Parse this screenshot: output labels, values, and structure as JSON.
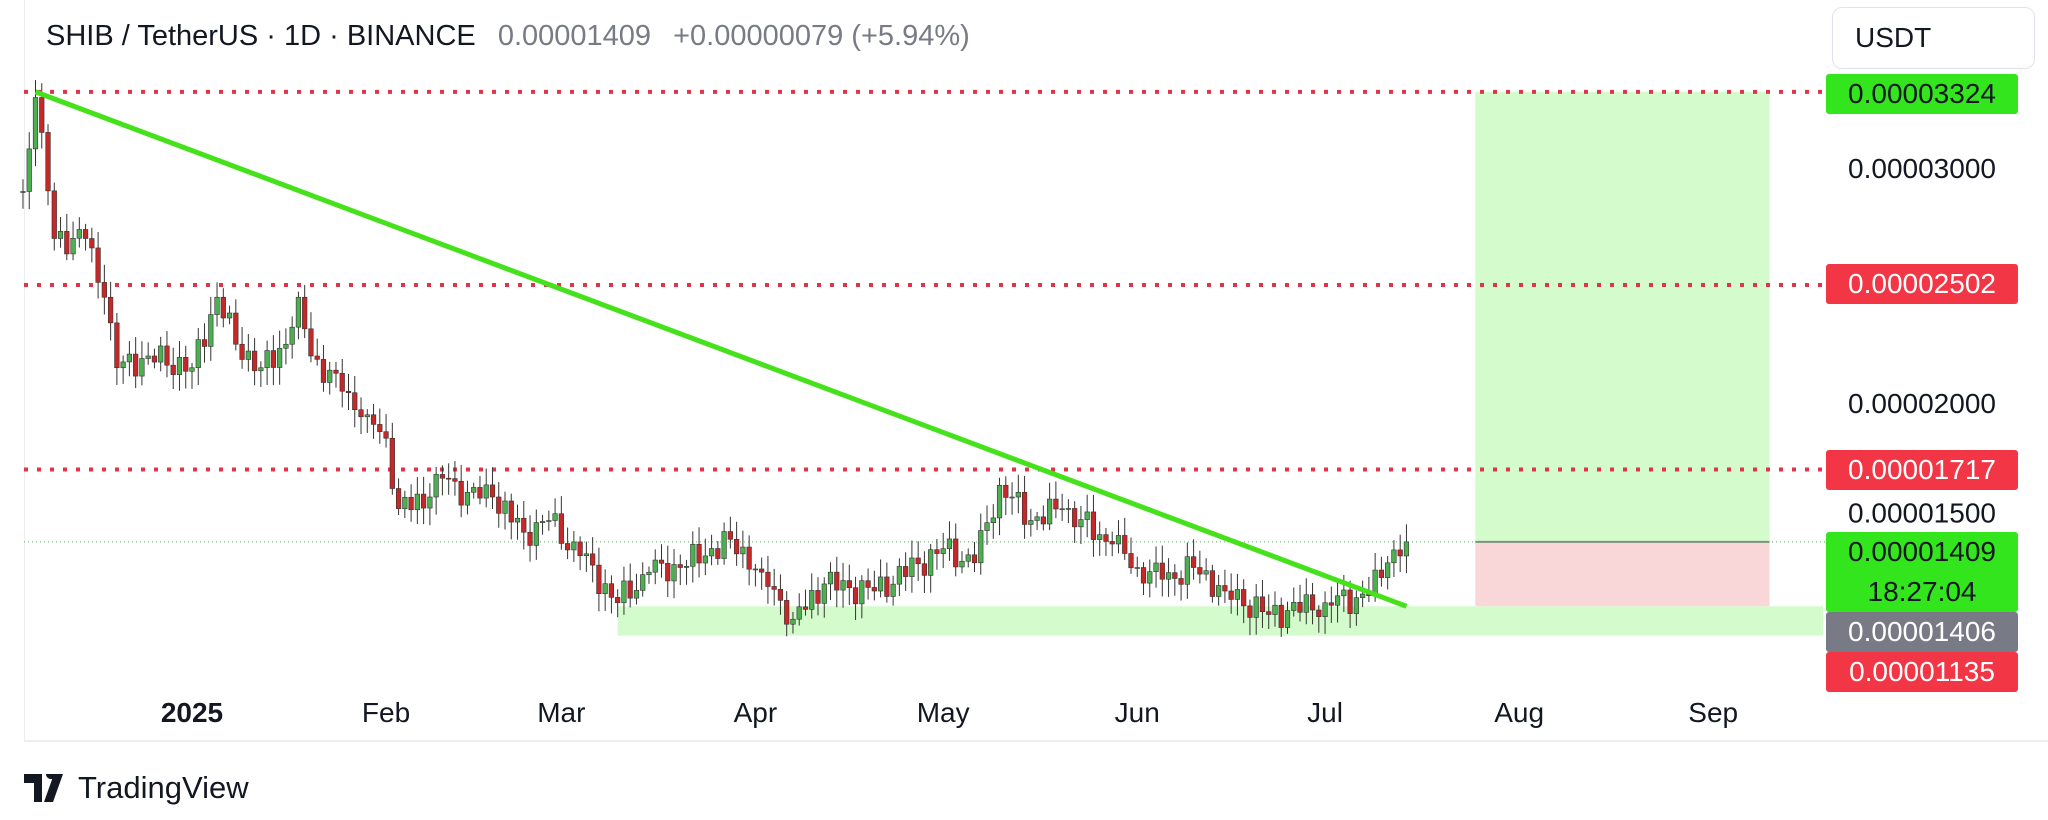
{
  "header": {
    "symbol": "SHIB / TetherUS · 1D · BINANCE",
    "price": "0.00001409",
    "change": "+0.00000079 (+5.94%)"
  },
  "currency_button": "USDT",
  "brand": "TradingView",
  "price_axis": {
    "plain_labels": [
      "0.00003000",
      "0.00002000",
      "0.00001500"
    ],
    "level_labels": [
      {
        "text": "0.00003324",
        "bg": "#33e51c",
        "fg": "#131722"
      },
      {
        "text": "0.00002502",
        "bg": "#f23645",
        "fg": "#ffffff"
      },
      {
        "text": "0.00001717",
        "bg": "#f23645",
        "fg": "#ffffff"
      },
      {
        "text": "0.00001409",
        "bg": "#33e51c",
        "fg": "#131722"
      },
      {
        "text": "18:27:04",
        "bg": "#33e51c",
        "fg": "#131722"
      },
      {
        "text": "0.00001406",
        "bg": "#787b86",
        "fg": "#ffffff"
      },
      {
        "text": "0.00001135",
        "bg": "#f23645",
        "fg": "#ffffff"
      }
    ]
  },
  "time_axis": [
    "2025",
    "Feb",
    "Mar",
    "Apr",
    "May",
    "Jun",
    "Jul",
    "Aug",
    "Sep"
  ],
  "colors": {
    "up": "#4caf50",
    "down": "#c62828",
    "trend": "#45e21b",
    "level": "#e0344b",
    "zone": "#d4fbcc",
    "loss": "#f9d7d9"
  },
  "chart_data": {
    "type": "candlestick",
    "title": "SHIB / TetherUS · 1D · BINANCE",
    "unit": "USDT (x1e-8)",
    "ylim": [
      1000,
      3400
    ],
    "xlabels": [
      "2025",
      "Feb",
      "Mar",
      "Apr",
      "May",
      "Jun",
      "Jul",
      "Aug",
      "Sep"
    ],
    "close_anchors": [
      [
        "2024-12-05",
        2900
      ],
      [
        "2024-12-07",
        3300
      ],
      [
        "2024-12-10",
        2700
      ],
      [
        "2024-12-15",
        2700
      ],
      [
        "2024-12-18",
        2450
      ],
      [
        "2024-12-20",
        2150
      ],
      [
        "2024-12-25",
        2200
      ],
      [
        "2025-01-01",
        2150
      ],
      [
        "2025-01-05",
        2450
      ],
      [
        "2025-01-08",
        2250
      ],
      [
        "2025-01-12",
        2150
      ],
      [
        "2025-01-16",
        2250
      ],
      [
        "2025-01-18",
        2450
      ],
      [
        "2025-01-20",
        2200
      ],
      [
        "2025-01-25",
        2050
      ],
      [
        "2025-01-29",
        1950
      ],
      [
        "2025-02-01",
        1850
      ],
      [
        "2025-02-03",
        1550
      ],
      [
        "2025-02-08",
        1600
      ],
      [
        "2025-02-10",
        1680
      ],
      [
        "2025-02-14",
        1620
      ],
      [
        "2025-02-18",
        1600
      ],
      [
        "2025-02-23",
        1450
      ],
      [
        "2025-02-27",
        1500
      ],
      [
        "2025-03-04",
        1350
      ],
      [
        "2025-03-10",
        1150
      ],
      [
        "2025-03-15",
        1280
      ],
      [
        "2025-03-20",
        1300
      ],
      [
        "2025-03-28",
        1420
      ],
      [
        "2025-04-02",
        1280
      ],
      [
        "2025-04-07",
        1080
      ],
      [
        "2025-04-12",
        1230
      ],
      [
        "2025-04-20",
        1200
      ],
      [
        "2025-05-01",
        1380
      ],
      [
        "2025-05-06",
        1320
      ],
      [
        "2025-05-10",
        1650
      ],
      [
        "2025-05-15",
        1500
      ],
      [
        "2025-05-20",
        1550
      ],
      [
        "2025-05-28",
        1400
      ],
      [
        "2025-06-01",
        1300
      ],
      [
        "2025-06-05",
        1250
      ],
      [
        "2025-06-10",
        1300
      ],
      [
        "2025-06-15",
        1200
      ],
      [
        "2025-06-22",
        1100
      ],
      [
        "2025-07-01",
        1150
      ],
      [
        "2025-07-08",
        1180
      ],
      [
        "2025-07-11",
        1320
      ],
      [
        "2025-07-14",
        1409
      ]
    ],
    "levels": [
      3324,
      2502,
      1717
    ],
    "last_price": 1409,
    "trendline": [
      [
        "2024-12-07",
        3324
      ],
      [
        "2025-07-14",
        1135
      ]
    ],
    "support_zone": {
      "from": "2025-03-10",
      "to": "2025-09-20",
      "low": 1010,
      "high": 1135
    },
    "long_position": {
      "from": "2025-07-25",
      "to": "2025-09-10",
      "entry": 1409,
      "target": 3324,
      "stop": 1135
    }
  }
}
